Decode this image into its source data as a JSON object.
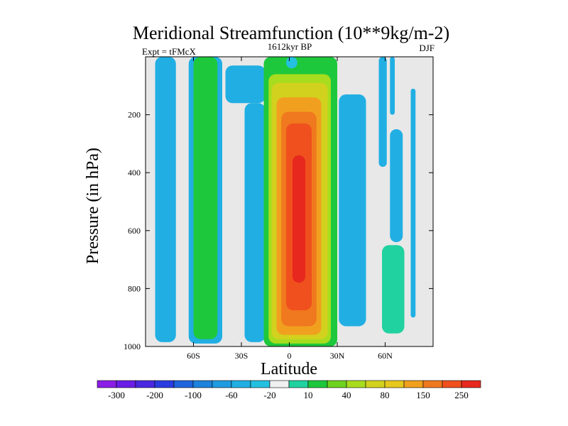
{
  "chart_data": {
    "type": "contour",
    "title": "Meridional Streamfunction (10**9kg/m-2)",
    "subtitle_left": "Expt = tFMcX",
    "subtitle_center": "1612kyr BP",
    "subtitle_right": "DJF",
    "xlabel": "Latitude",
    "ylabel": "Pressure (in hPa)",
    "xlim": [
      -90,
      90
    ],
    "ylim": [
      0,
      1000
    ],
    "y_inverted": true,
    "x_ticks": [
      {
        "value": -60,
        "label": "60S"
      },
      {
        "value": -30,
        "label": "30S"
      },
      {
        "value": 0,
        "label": "0"
      },
      {
        "value": 30,
        "label": "30N"
      },
      {
        "value": 60,
        "label": "60N"
      }
    ],
    "y_ticks": [
      {
        "value": 200,
        "label": "200"
      },
      {
        "value": 400,
        "label": "400"
      },
      {
        "value": 600,
        "label": "600"
      },
      {
        "value": 800,
        "label": "800"
      },
      {
        "value": 1000,
        "label": "1000"
      }
    ],
    "background_color": "#e8e8e8",
    "colorbar": {
      "colors": [
        "#8a1ee6",
        "#6a1ee6",
        "#4a28e0",
        "#2a3ce0",
        "#1f64dc",
        "#1c82dc",
        "#1f9be0",
        "#21afe3",
        "#24c0e0",
        "#f0f0f0",
        "#20d2a0",
        "#1ec83c",
        "#6ed21e",
        "#a8dc1e",
        "#d2d21e",
        "#e6c81e",
        "#f0a01e",
        "#f0781e",
        "#f0501e",
        "#e6281e"
      ],
      "labels": [
        {
          "after_index": 0,
          "text": "-300"
        },
        {
          "after_index": 2,
          "text": "-200"
        },
        {
          "after_index": 4,
          "text": "-100"
        },
        {
          "after_index": 6,
          "text": "-60"
        },
        {
          "after_index": 8,
          "text": "-20"
        },
        {
          "after_index": 10,
          "text": "10"
        },
        {
          "after_index": 12,
          "text": "40"
        },
        {
          "after_index": 14,
          "text": "80"
        },
        {
          "after_index": 16,
          "text": "150"
        },
        {
          "after_index": 18,
          "text": "250"
        }
      ]
    },
    "cells": [
      {
        "name": "south-polar-cell-outer",
        "color": "#21afe3",
        "lat": [
          -84,
          -71
        ],
        "p": [
          0,
          985
        ]
      },
      {
        "name": "southern-ferrel-cell-outer",
        "color": "#21afe3",
        "lat": [
          -63,
          -42
        ],
        "p": [
          0,
          990
        ]
      },
      {
        "name": "southern-ferrel-cell-core",
        "color": "#1ec83c",
        "lat": [
          -60,
          -45
        ],
        "p": [
          0,
          975
        ]
      },
      {
        "name": "upper-level-blob-south",
        "color": "#21afe3",
        "lat": [
          -40,
          -15
        ],
        "p": [
          30,
          160
        ]
      },
      {
        "name": "southern-hadley-negative-cell",
        "color": "#21afe3",
        "lat": [
          -28,
          -15
        ],
        "p": [
          160,
          985
        ]
      },
      {
        "name": "hadley-cell-level-1",
        "color": "#1ec83c",
        "lat": [
          -16,
          30
        ],
        "p": [
          0,
          1000
        ]
      },
      {
        "name": "hadley-cell-level-2",
        "color": "#a8dc1e",
        "lat": [
          -13,
          26
        ],
        "p": [
          60,
          990
        ]
      },
      {
        "name": "hadley-cell-level-3",
        "color": "#d2d21e",
        "lat": [
          -11,
          24
        ],
        "p": [
          90,
          975
        ]
      },
      {
        "name": "hadley-cell-level-4",
        "color": "#f0a01e",
        "lat": [
          -8,
          20
        ],
        "p": [
          140,
          960
        ]
      },
      {
        "name": "hadley-cell-level-5",
        "color": "#f0781e",
        "lat": [
          -5,
          17
        ],
        "p": [
          190,
          930
        ]
      },
      {
        "name": "hadley-cell-level-6",
        "color": "#f0501e",
        "lat": [
          -2,
          14
        ],
        "p": [
          230,
          875
        ]
      },
      {
        "name": "hadley-cell-level-7",
        "color": "#e6281e",
        "lat": [
          2,
          10
        ],
        "p": [
          340,
          780
        ]
      },
      {
        "name": "upper-tropics-cyan",
        "color": "#24c0e0",
        "lat": [
          -2,
          5
        ],
        "p": [
          0,
          40
        ]
      },
      {
        "name": "northern-hadley-negative-cell",
        "color": "#21afe3",
        "lat": [
          31,
          48
        ],
        "p": [
          130,
          930
        ]
      },
      {
        "name": "northern-ferrel-cell-teal",
        "color": "#20d2a0",
        "lat": [
          58,
          72
        ],
        "p": [
          650,
          955
        ]
      },
      {
        "name": "northern-upper-cyan-streak-1",
        "color": "#21afe3",
        "lat": [
          56,
          61
        ],
        "p": [
          0,
          380
        ]
      },
      {
        "name": "northern-upper-cyan-streak-2",
        "color": "#21afe3",
        "lat": [
          63,
          66
        ],
        "p": [
          0,
          200
        ]
      },
      {
        "name": "northern-upper-cyan-streak-3",
        "color": "#21afe3",
        "lat": [
          76,
          79
        ],
        "p": [
          110,
          900
        ]
      },
      {
        "name": "northern-mid-cyan-streak",
        "color": "#21afe3",
        "lat": [
          63,
          71
        ],
        "p": [
          250,
          640
        ]
      }
    ]
  }
}
